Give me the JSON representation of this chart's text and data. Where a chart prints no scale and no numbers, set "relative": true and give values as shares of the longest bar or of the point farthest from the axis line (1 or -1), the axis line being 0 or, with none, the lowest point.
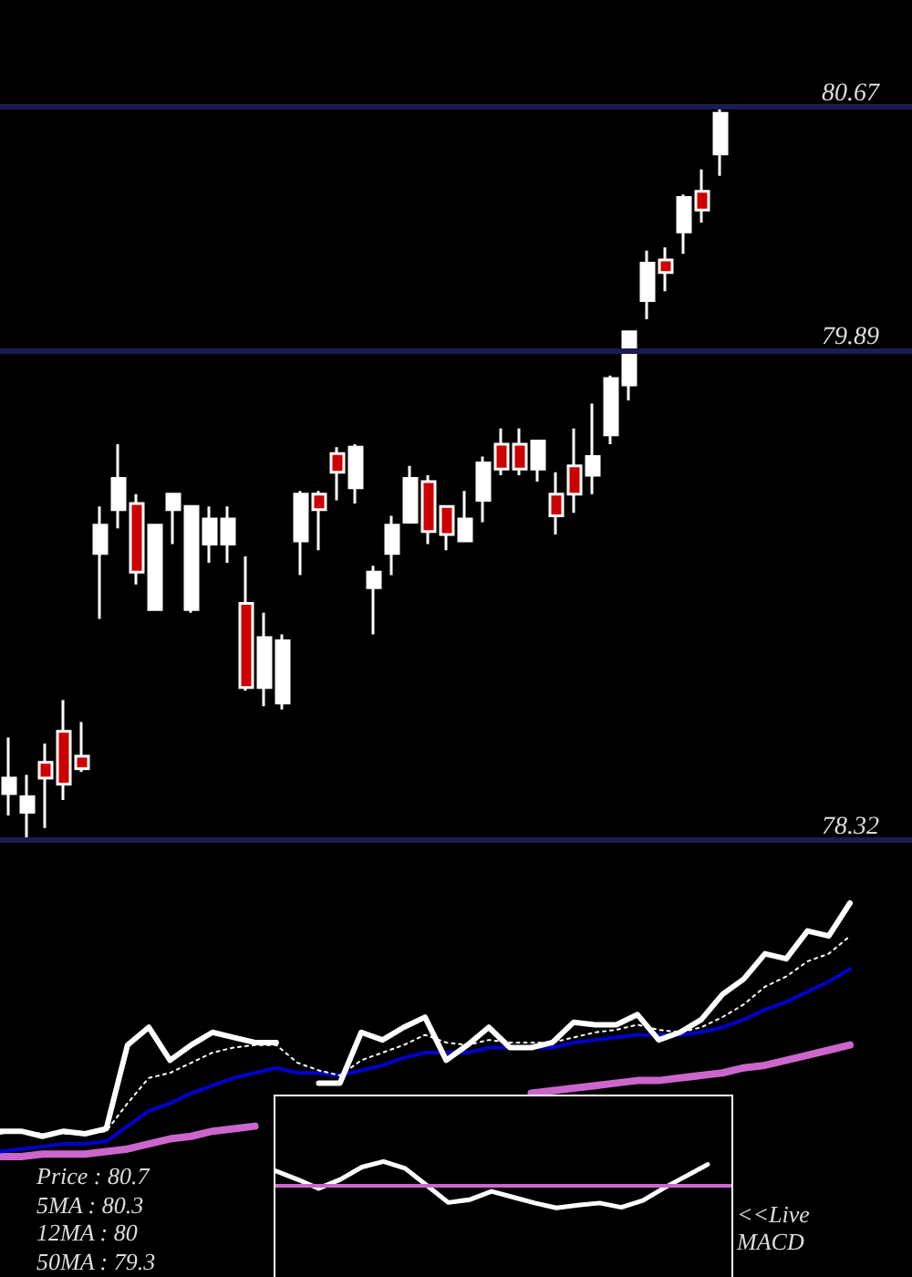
{
  "chart_data": [
    {
      "type": "candlestick",
      "categories": [
        null,
        null,
        null,
        null,
        null,
        null,
        null,
        null,
        null,
        null,
        null,
        null,
        null,
        null,
        null,
        null,
        null,
        null,
        null,
        null,
        null,
        null,
        null,
        null,
        null,
        null,
        null,
        null,
        null,
        null,
        null,
        null,
        null,
        null,
        null,
        null,
        null,
        null,
        null,
        null
      ],
      "ohlc": [
        [
          78.47,
          78.65,
          78.4,
          78.52
        ],
        [
          78.41,
          78.53,
          78.32,
          78.46
        ],
        [
          78.57,
          78.63,
          78.36,
          78.52
        ],
        [
          78.67,
          78.77,
          78.45,
          78.5
        ],
        [
          78.59,
          78.7,
          78.54,
          78.55
        ],
        [
          79.24,
          79.39,
          79.03,
          79.33
        ],
        [
          79.38,
          79.59,
          79.32,
          79.48
        ],
        [
          79.4,
          79.43,
          79.14,
          79.18
        ],
        [
          79.06,
          79.33,
          79.06,
          79.33
        ],
        [
          79.38,
          79.43,
          79.27,
          79.43
        ],
        [
          79.06,
          79.39,
          79.05,
          79.39
        ],
        [
          79.27,
          79.39,
          79.21,
          79.35
        ],
        [
          79.27,
          79.39,
          79.21,
          79.35
        ],
        [
          79.08,
          79.23,
          78.8,
          78.81
        ],
        [
          78.81,
          79.05,
          78.75,
          78.97
        ],
        [
          78.76,
          78.98,
          78.74,
          78.96
        ],
        [
          79.28,
          79.44,
          79.17,
          79.43
        ],
        [
          79.43,
          79.44,
          79.25,
          79.38
        ],
        [
          79.56,
          79.58,
          79.41,
          79.5
        ],
        [
          79.45,
          79.59,
          79.4,
          79.58
        ],
        [
          79.13,
          79.2,
          78.98,
          79.18
        ],
        [
          79.24,
          79.36,
          79.17,
          79.33
        ],
        [
          79.34,
          79.52,
          79.34,
          79.48
        ],
        [
          79.47,
          79.49,
          79.27,
          79.31
        ],
        [
          79.39,
          79.39,
          79.25,
          79.3
        ],
        [
          79.28,
          79.44,
          79.28,
          79.35
        ],
        [
          79.41,
          79.55,
          79.34,
          79.53
        ],
        [
          79.59,
          79.64,
          79.49,
          79.51
        ],
        [
          79.59,
          79.64,
          79.49,
          79.51
        ],
        [
          79.51,
          79.6,
          79.47,
          79.6
        ],
        [
          79.43,
          79.5,
          79.3,
          79.36
        ],
        [
          79.52,
          79.64,
          79.37,
          79.43
        ],
        [
          79.49,
          79.72,
          79.43,
          79.55
        ],
        [
          79.62,
          79.81,
          79.59,
          79.8
        ],
        [
          79.78,
          79.95,
          79.73,
          79.95
        ],
        [
          80.05,
          80.21,
          79.99,
          80.17
        ],
        [
          80.18,
          80.22,
          80.08,
          80.14
        ],
        [
          80.27,
          80.39,
          80.2,
          80.38
        ],
        [
          80.4,
          80.47,
          80.3,
          80.34
        ],
        [
          80.52,
          80.67,
          80.45,
          80.65
        ]
      ],
      "colors": [
        "#ffffff",
        "#ffffff",
        "#cc0000",
        "#cc0000",
        "#cc0000",
        "#ffffff",
        "#ffffff",
        "#cc0000",
        "#ffffff",
        "#ffffff",
        "#ffffff",
        "#ffffff",
        "#ffffff",
        "#cc0000",
        "#ffffff",
        "#ffffff",
        "#ffffff",
        "#cc0000",
        "#cc0000",
        "#ffffff",
        "#ffffff",
        "#ffffff",
        "#ffffff",
        "#cc0000",
        "#cc0000",
        "#ffffff",
        "#ffffff",
        "#cc0000",
        "#cc0000",
        "#ffffff",
        "#cc0000",
        "#cc0000",
        "#ffffff",
        "#ffffff",
        "#ffffff",
        "#ffffff",
        "#cc0000",
        "#ffffff",
        "#cc0000",
        "#ffffff"
      ],
      "color": "#ffffff",
      "ylim": [
        78.32,
        80.67
      ],
      "yticks": [
        78.32,
        79.89,
        80.67
      ],
      "tick_labels": "y",
      "ref_lines": [
        {
          "axis": "y",
          "value": 80.67,
          "color": "#1c1c50"
        },
        {
          "axis": "y",
          "value": 79.89,
          "color": "#1c1c50"
        },
        {
          "axis": "y",
          "value": 78.32,
          "color": "#1c1c50"
        }
      ]
    },
    {
      "type": "line",
      "relative": true,
      "categories": [
        null,
        null,
        null,
        null,
        null,
        null,
        null,
        null,
        null,
        null,
        null,
        null,
        null,
        null,
        null,
        null,
        null,
        null,
        null,
        null,
        null,
        null,
        null,
        null,
        null,
        null,
        null,
        null,
        null,
        null,
        null,
        null,
        null,
        null,
        null,
        null,
        null,
        null,
        null,
        null,
        null
      ],
      "series": [
        {
          "color": "#ffffff",
          "values": [
            0.1,
            0.1,
            0.08,
            0.1,
            0.09,
            0.11,
            0.44,
            0.51,
            0.38,
            0.44,
            0.49,
            0.47,
            0.45,
            0.45,
            null,
            0.29,
            0.29,
            0.49,
            0.46,
            0.51,
            0.55,
            0.38,
            0.44,
            0.51,
            0.43,
            0.43,
            0.45,
            0.53,
            0.52,
            0.52,
            0.56,
            0.46,
            0.49,
            0.54,
            0.64,
            0.7,
            0.8,
            0.78,
            0.89,
            0.87,
            1
          ]
        },
        {
          "color": "#ffffff",
          "line_style": "dotted",
          "values": [
            0.09,
            0.1,
            0.09,
            0.09,
            0.09,
            0.1,
            0.21,
            0.31,
            0.33,
            0.37,
            0.41,
            0.43,
            0.44,
            0.44,
            0.37,
            0.34,
            0.32,
            0.38,
            0.41,
            0.44,
            0.48,
            0.45,
            0.44,
            0.46,
            0.45,
            0.45,
            0.45,
            0.47,
            0.49,
            0.5,
            0.52,
            0.5,
            0.49,
            0.51,
            0.55,
            0.6,
            0.67,
            0.71,
            0.77,
            0.8,
            0.87
          ]
        },
        {
          "color": "#0000cc",
          "values": [
            0.02,
            0.03,
            0.04,
            0.05,
            0.05,
            0.06,
            0.12,
            0.18,
            0.21,
            0.25,
            0.28,
            0.31,
            0.33,
            0.35,
            0.33,
            0.33,
            0.32,
            0.34,
            0.36,
            0.39,
            0.41,
            0.41,
            0.41,
            0.43,
            0.43,
            0.43,
            0.43,
            0.45,
            0.46,
            0.47,
            0.48,
            0.48,
            0.48,
            0.49,
            0.51,
            0.54,
            0.58,
            0.61,
            0.65,
            0.69,
            0.74
          ]
        },
        {
          "color": "#cc66cc",
          "values": [
            0,
            0,
            0.01,
            0.01,
            0.01,
            0.02,
            0.03,
            0.05,
            0.07,
            0.08,
            0.1,
            0.11,
            0.12,
            null,
            null,
            null,
            null,
            null,
            null,
            null,
            null,
            null,
            null,
            null,
            null,
            0.25,
            0.26,
            0.27,
            0.28,
            0.29,
            0.3,
            0.3,
            0.31,
            0.32,
            0.33,
            0.35,
            0.36,
            0.38,
            0.4,
            0.42,
            0.44
          ]
        }
      ],
      "marker": "none",
      "line_style": "solid",
      "tick_labels": false,
      "annotations": [
        "Price : 80.7",
        "5MA : 80.3",
        "12MA : 80",
        "50MA : 79.3"
      ]
    },
    {
      "type": "line",
      "relative": true,
      "categories": [
        null,
        null,
        null,
        null,
        null,
        null,
        null,
        null,
        null,
        null,
        null,
        null,
        null,
        null,
        null,
        null,
        null,
        null,
        null,
        null,
        null
      ],
      "series": [
        {
          "color": "#ffffff",
          "values": [
            0.62,
            0.27,
            -0.11,
            0.26,
            0.77,
            1,
            0.72,
            0.02,
            -0.69,
            -0.57,
            -0.23,
            -0.47,
            -0.71,
            -0.91,
            -0.8,
            -0.71,
            -0.89,
            -0.61,
            -0.08,
            0.4,
            0.88
          ]
        }
      ],
      "ref_lines": [
        {
          "axis": "y",
          "value": 0,
          "color": "#cc66cc"
        }
      ],
      "marker": "none",
      "line_style": "solid",
      "tick_labels": false,
      "annotations": [
        "<<Live MACD"
      ]
    }
  ]
}
